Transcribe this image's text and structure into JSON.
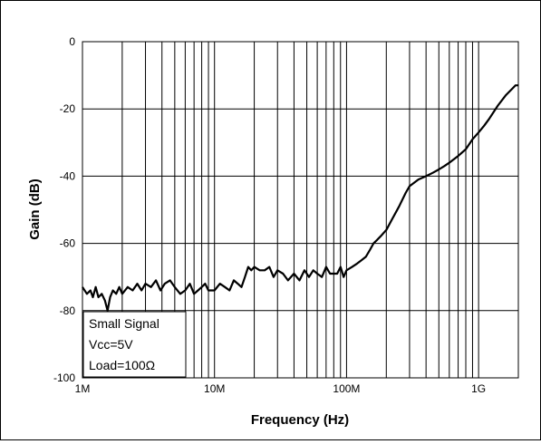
{
  "chart_data": {
    "type": "line",
    "title": "",
    "xlabel": "Frequency (Hz)",
    "ylabel": "Gain (dB)",
    "x_scale": "log",
    "xlim": [
      1000000,
      2000000000
    ],
    "ylim": [
      -100,
      0
    ],
    "x_tick_values": [
      1000000,
      10000000,
      100000000,
      1000000000
    ],
    "x_tick_labels": [
      "1M",
      "10M",
      "100M",
      "1G"
    ],
    "y_tick_values": [
      0,
      -20,
      -40,
      -60,
      -80,
      -100
    ],
    "y_tick_labels": [
      "0",
      "-20",
      "-40",
      "-60",
      "-80",
      "-100"
    ],
    "grid": true,
    "annotation": [
      "Small Signal",
      "Vcc=5V",
      "Load=100Ω"
    ],
    "series": [
      {
        "color": "#000000",
        "x": [
          1000000,
          1080000,
          1150000,
          1200000,
          1260000,
          1320000,
          1400000,
          1480000,
          1550000,
          1620000,
          1700000,
          1800000,
          1900000,
          2000000,
          2200000,
          2400000,
          2600000,
          2800000,
          3000000,
          3300000,
          3600000,
          3900000,
          4200000,
          4600000,
          5000000,
          5500000,
          6000000,
          6500000,
          7000000,
          7500000,
          8000000,
          8500000,
          9000000,
          10000000,
          11000000,
          12000000,
          13000000,
          14000000,
          15000000,
          16000000,
          17000000,
          18000000,
          19000000,
          20000000,
          22000000,
          24000000,
          26000000,
          28000000,
          30000000,
          33000000,
          36000000,
          40000000,
          44000000,
          48000000,
          52000000,
          56000000,
          60000000,
          65000000,
          70000000,
          75000000,
          80000000,
          85000000,
          90000000,
          95000000,
          100000000,
          110000000,
          120000000,
          130000000,
          140000000,
          150000000,
          160000000,
          170000000,
          180000000,
          200000000,
          220000000,
          250000000,
          280000000,
          300000000,
          350000000,
          400000000,
          450000000,
          500000000,
          550000000,
          600000000,
          700000000,
          800000000,
          900000000,
          1000000000,
          1100000000,
          1200000000,
          1400000000,
          1600000000,
          1800000000,
          1900000000,
          2000000000
        ],
        "y": [
          -73,
          -75,
          -74,
          -76,
          -73,
          -76,
          -75,
          -77,
          -80,
          -76,
          -74,
          -75,
          -73,
          -75,
          -73,
          -74,
          -72,
          -74,
          -72,
          -73,
          -71,
          -74,
          -72,
          -71,
          -73,
          -75,
          -74,
          -72,
          -75,
          -74,
          -73,
          -72,
          -74,
          -74,
          -72,
          -73,
          -74,
          -71,
          -72,
          -73,
          -70,
          -67,
          -68,
          -67,
          -68,
          -68,
          -67,
          -70,
          -68,
          -69,
          -71,
          -69,
          -71,
          -68,
          -70,
          -68,
          -69,
          -70,
          -67,
          -69,
          -69,
          -69,
          -67,
          -70,
          -68,
          -67,
          -66,
          -65,
          -64,
          -62,
          -60,
          -59,
          -58,
          -56,
          -53,
          -49,
          -45,
          -43,
          -41,
          -40,
          -39,
          -38,
          -37,
          -36,
          -34,
          -32,
          -29,
          -27,
          -25,
          -23,
          -19,
          -16,
          -14,
          -13,
          -13
        ]
      }
    ]
  }
}
